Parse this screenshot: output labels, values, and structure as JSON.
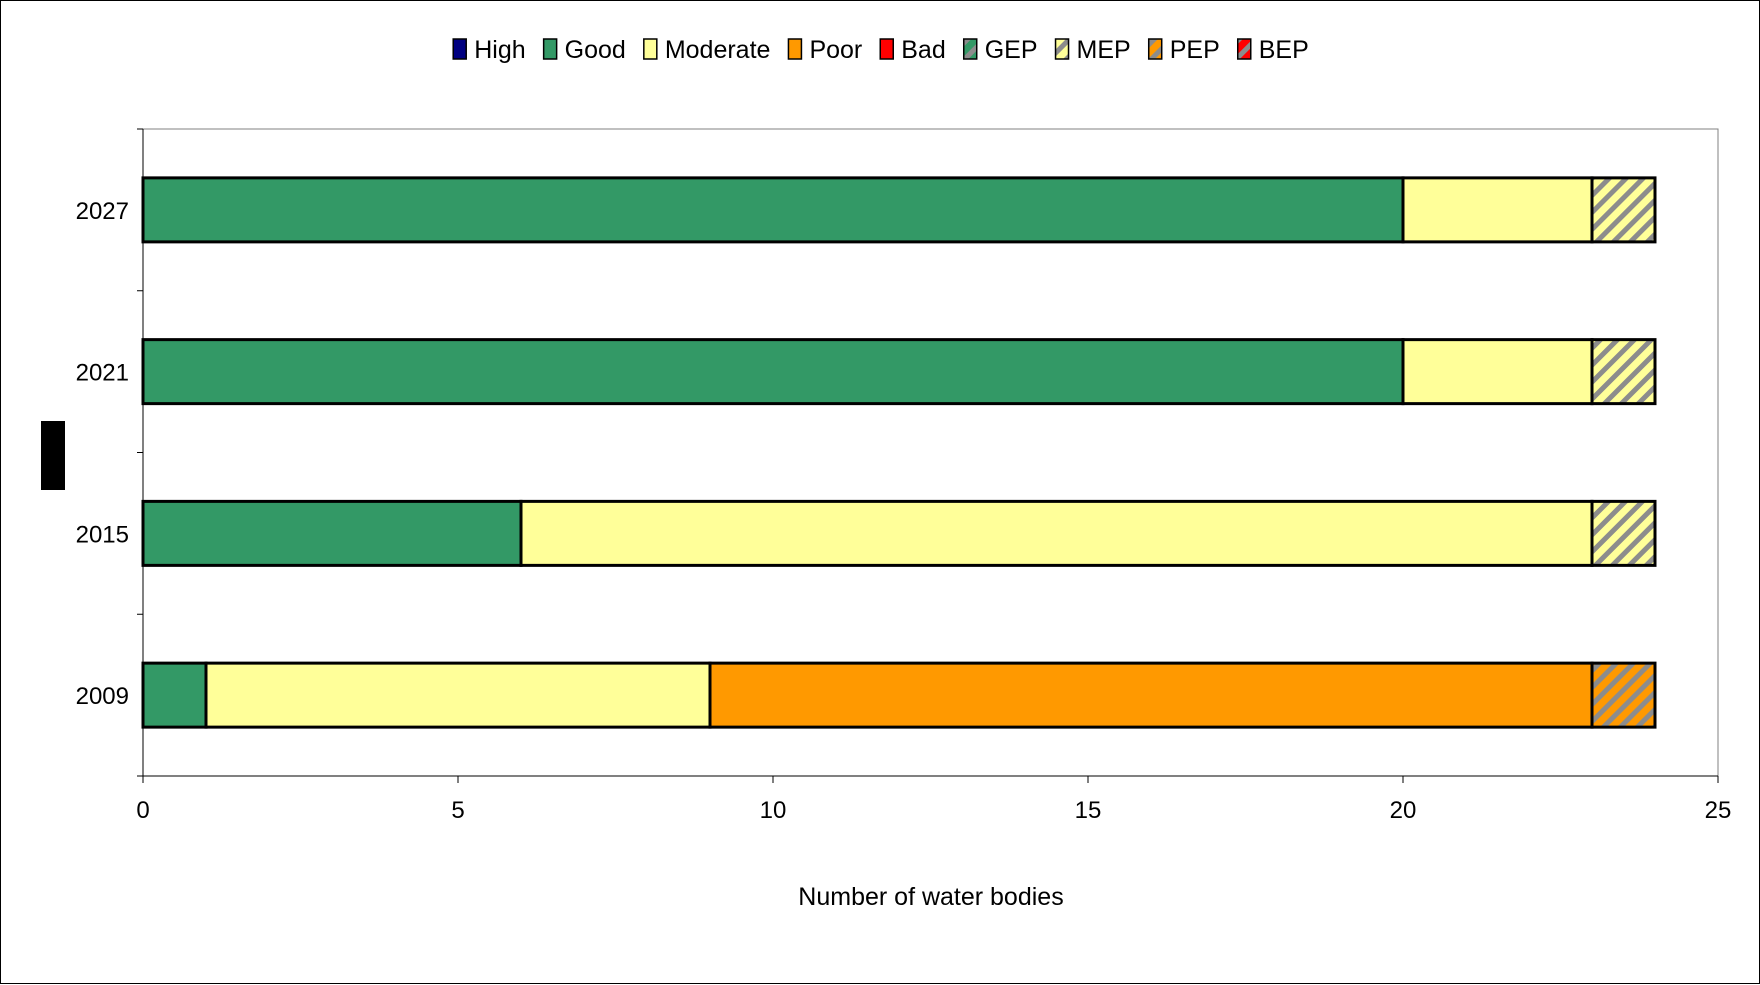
{
  "chart_data": {
    "type": "bar",
    "orientation": "horizontal",
    "stacked": true,
    "title": "",
    "xlabel": "Number of water bodies",
    "ylabel": "",
    "xlim": [
      0,
      25
    ],
    "xticks": [
      0,
      5,
      10,
      15,
      20,
      25
    ],
    "categories": [
      "2009",
      "2015",
      "2021",
      "2027"
    ],
    "legend_position": "top",
    "grid": false,
    "series": [
      {
        "name": "High",
        "color": "#000080",
        "pattern": "solid",
        "values": [
          0,
          0,
          0,
          0
        ]
      },
      {
        "name": "Good",
        "color": "#339966",
        "pattern": "solid",
        "values": [
          1,
          6,
          20,
          20
        ]
      },
      {
        "name": "Moderate",
        "color": "#FFFF99",
        "pattern": "solid",
        "values": [
          8,
          17,
          3,
          3
        ]
      },
      {
        "name": "Poor",
        "color": "#FF9900",
        "pattern": "solid",
        "values": [
          14,
          0,
          0,
          0
        ]
      },
      {
        "name": "Bad",
        "color": "#FF0000",
        "pattern": "solid",
        "values": [
          0,
          0,
          0,
          0
        ]
      },
      {
        "name": "GEP",
        "color": "#339966",
        "pattern": "hatch",
        "values": [
          0,
          0,
          0,
          0
        ]
      },
      {
        "name": "MEP",
        "color": "#FFFF99",
        "pattern": "hatch",
        "values": [
          0,
          1,
          1,
          1
        ]
      },
      {
        "name": "PEP",
        "color": "#FF9900",
        "pattern": "hatch",
        "values": [
          1,
          0,
          0,
          0
        ]
      },
      {
        "name": "BEP",
        "color": "#FF0000",
        "pattern": "hatch",
        "values": [
          0,
          0,
          0,
          0
        ]
      }
    ]
  }
}
